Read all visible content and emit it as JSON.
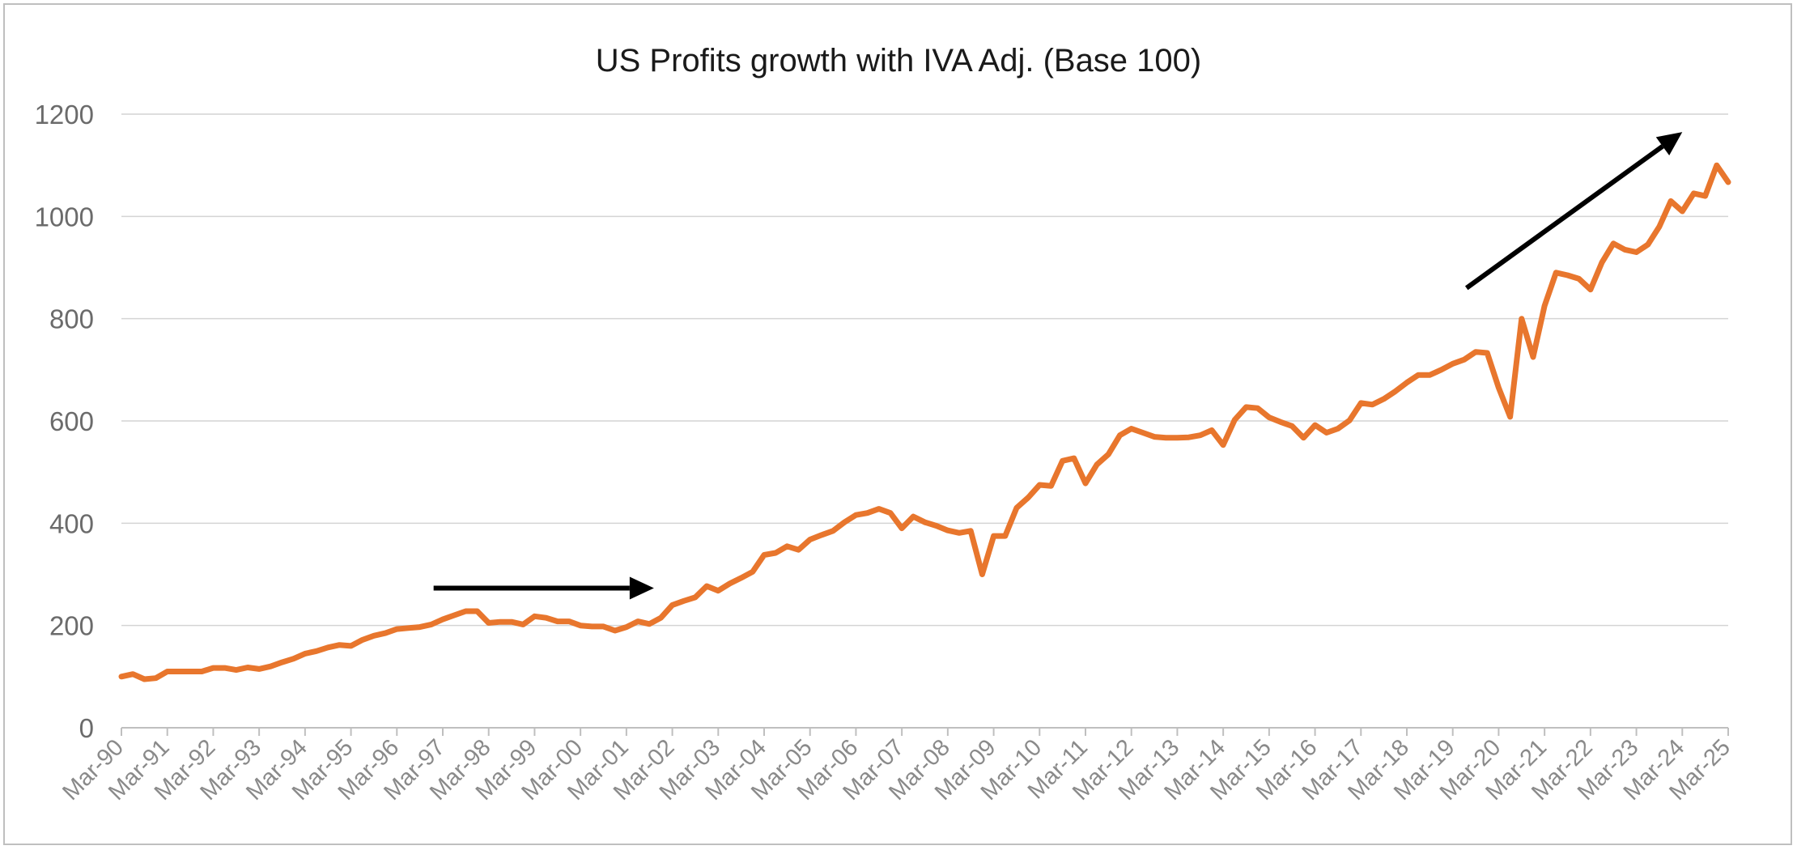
{
  "chart_data": {
    "type": "line",
    "title": "US Profits growth with IVA Adj. (Base 100)",
    "xlabel": "",
    "ylabel": "",
    "ylim": [
      0,
      1200
    ],
    "yticks": [
      "0",
      "200",
      "400",
      "600",
      "800",
      "1000",
      "1200"
    ],
    "categories": [
      "Mar-90",
      "Mar-91",
      "Mar-92",
      "Mar-93",
      "Mar-94",
      "Mar-95",
      "Mar-96",
      "Mar-97",
      "Mar-98",
      "Mar-99",
      "Mar-00",
      "Mar-01",
      "Mar-02",
      "Mar-03",
      "Mar-04",
      "Mar-05",
      "Mar-06",
      "Mar-07",
      "Mar-08",
      "Mar-09",
      "Mar-10",
      "Mar-11",
      "Mar-12",
      "Mar-13",
      "Mar-14",
      "Mar-15",
      "Mar-16",
      "Mar-17",
      "Mar-18",
      "Mar-19",
      "Mar-20",
      "Mar-21",
      "Mar-22",
      "Mar-23",
      "Mar-24",
      "Mar-25"
    ],
    "series": [
      {
        "name": "US Profits growth with IVA Adj. (Base 100)",
        "color": "#e8762d",
        "x": [
          1990.0,
          1990.25,
          1990.5,
          1990.75,
          1991.0,
          1991.25,
          1991.5,
          1991.75,
          1992.0,
          1992.25,
          1992.5,
          1992.75,
          1993.0,
          1993.25,
          1993.5,
          1993.75,
          1994.0,
          1994.25,
          1994.5,
          1994.75,
          1995.0,
          1995.25,
          1995.5,
          1995.75,
          1996.0,
          1996.25,
          1996.5,
          1996.75,
          1997.0,
          1997.25,
          1997.5,
          1997.75,
          1998.0,
          1998.25,
          1998.5,
          1998.75,
          1999.0,
          1999.25,
          1999.5,
          1999.75,
          2000.0,
          2000.25,
          2000.5,
          2000.75,
          2001.0,
          2001.25,
          2001.5,
          2001.75,
          2002.0,
          2002.25,
          2002.5,
          2002.75,
          2003.0,
          2003.25,
          2003.5,
          2003.75,
          2004.0,
          2004.25,
          2004.5,
          2004.75,
          2005.0,
          2005.25,
          2005.5,
          2005.75,
          2006.0,
          2006.25,
          2006.5,
          2006.75,
          2007.0,
          2007.25,
          2007.5,
          2007.75,
          2008.0,
          2008.25,
          2008.5,
          2008.75,
          2009.0,
          2009.25,
          2009.5,
          2009.75,
          2010.0,
          2010.25,
          2010.5,
          2010.75,
          2011.0,
          2011.25,
          2011.5,
          2011.75,
          2012.0,
          2012.25,
          2012.5,
          2012.75,
          2013.0,
          2013.25,
          2013.5,
          2013.75,
          2014.0,
          2014.25,
          2014.5,
          2014.75,
          2015.0,
          2015.25,
          2015.5,
          2015.75,
          2016.0,
          2016.25,
          2016.5,
          2016.75,
          2017.0,
          2017.25,
          2017.5,
          2017.75,
          2018.0,
          2018.25,
          2018.5,
          2018.75,
          2019.0,
          2019.25,
          2019.5,
          2019.75,
          2020.0,
          2020.25,
          2020.5,
          2020.75,
          2021.0,
          2021.25,
          2021.5,
          2021.75,
          2022.0,
          2022.25,
          2022.5,
          2022.75,
          2023.0,
          2023.25,
          2023.5,
          2023.75,
          2024.0,
          2024.25,
          2024.5,
          2024.75,
          2025.0
        ],
        "values": [
          100,
          105,
          95,
          97,
          110,
          110,
          110,
          110,
          117,
          117,
          113,
          118,
          115,
          120,
          128,
          135,
          145,
          150,
          157,
          162,
          160,
          172,
          180,
          185,
          193,
          195,
          197,
          202,
          212,
          220,
          228,
          228,
          205,
          207,
          207,
          202,
          218,
          215,
          208,
          208,
          200,
          198,
          198,
          190,
          197,
          208,
          203,
          215,
          240,
          248,
          255,
          277,
          268,
          282,
          293,
          305,
          338,
          342,
          355,
          348,
          368,
          377,
          385,
          402,
          416,
          420,
          428,
          420,
          390,
          413,
          402,
          395,
          386,
          381,
          385,
          300,
          375,
          375,
          430,
          450,
          475,
          473,
          522,
          527,
          478,
          515,
          535,
          572,
          585,
          577,
          569,
          567,
          567,
          568,
          572,
          582,
          553,
          602,
          627,
          625,
          607,
          598,
          590,
          567,
          592,
          577,
          585,
          601,
          635,
          632,
          643,
          658,
          675,
          690,
          690,
          700,
          712,
          720,
          735,
          733,
          665,
          608,
          800,
          725,
          825,
          890,
          885,
          878,
          857,
          910,
          947,
          935,
          930,
          945,
          980,
          1030,
          1010,
          1045,
          1040,
          1100,
          1067
        ]
      }
    ],
    "annotations": [
      {
        "type": "arrow",
        "from": [
          1996.8,
          273
        ],
        "to": [
          2001.6,
          273
        ]
      },
      {
        "type": "arrow",
        "from": [
          2019.3,
          860
        ],
        "to": [
          2024.0,
          1165
        ]
      }
    ]
  }
}
